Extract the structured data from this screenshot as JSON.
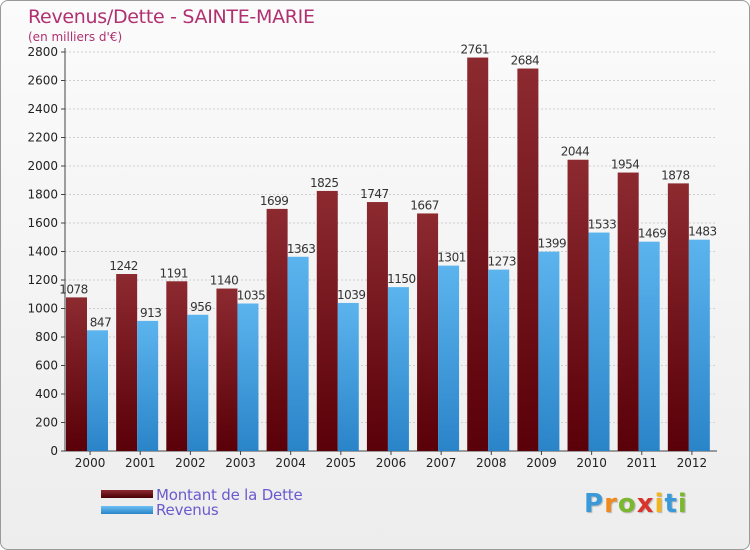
{
  "chart_data": {
    "type": "bar",
    "title": "Revenus/Dette - SAINTE-MARIE",
    "subtitle": "(en milliers d'€)",
    "categories": [
      "2000",
      "2001",
      "2002",
      "2003",
      "2004",
      "2005",
      "2006",
      "2007",
      "2008",
      "2009",
      "2010",
      "2011",
      "2012"
    ],
    "series": [
      {
        "name": "Montant de la Dette",
        "color": "#7a1c22",
        "values": [
          1078,
          1242,
          1191,
          1140,
          1699,
          1825,
          1747,
          1667,
          2761,
          2684,
          2044,
          1954,
          1878
        ]
      },
      {
        "name": "Revenus",
        "color": "#4ea8e6",
        "values": [
          847,
          913,
          956,
          1035,
          1363,
          1039,
          1150,
          1301,
          1273,
          1399,
          1533,
          1469,
          1483
        ]
      }
    ],
    "ylim": [
      0,
      2800
    ],
    "yticks": [
      0,
      200,
      400,
      600,
      800,
      1000,
      1200,
      1400,
      1600,
      1800,
      2000,
      2200,
      2400,
      2600,
      2800
    ],
    "grid": true,
    "legend_position": "bottom-left"
  },
  "logo": {
    "letters": [
      "P",
      "r",
      "o",
      "x",
      "i",
      "t",
      "i"
    ],
    "colors": [
      "#3a9ad9",
      "#f08a1c",
      "#7cb82f",
      "#d8342c",
      "#f0b41c",
      "#3a9ad9",
      "#7cb82f"
    ]
  }
}
